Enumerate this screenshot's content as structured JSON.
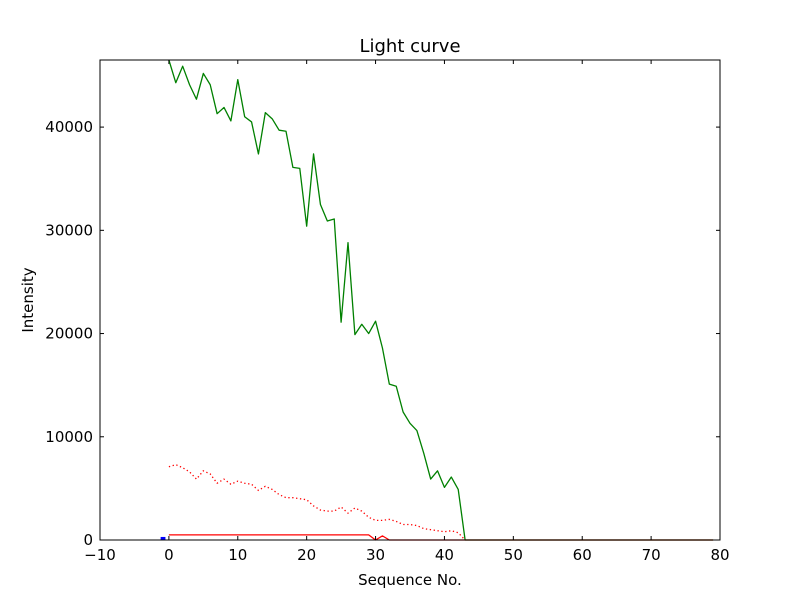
{
  "chart_data": {
    "type": "line",
    "title": "Light curve",
    "xlabel": "Sequence No.",
    "ylabel": "Intensity",
    "xlim": [
      -10,
      80
    ],
    "ylim": [
      0,
      46500
    ],
    "xticks": [
      -10,
      0,
      10,
      20,
      30,
      40,
      50,
      60,
      70,
      80
    ],
    "yticks": [
      0,
      10000,
      20000,
      30000,
      40000
    ],
    "grid": false,
    "legend": "none",
    "series": [
      {
        "color": "#008000",
        "style": "solid",
        "x": [
          0,
          1,
          2,
          3,
          4,
          5,
          6,
          7,
          8,
          9,
          10,
          11,
          12,
          13,
          14,
          15,
          16,
          17,
          18,
          19,
          20,
          21,
          22,
          23,
          24,
          25,
          26,
          27,
          28,
          29,
          30,
          31,
          32,
          33,
          34,
          35,
          36,
          37,
          38,
          39,
          40,
          41,
          42,
          43,
          44,
          45,
          46,
          47,
          48,
          49,
          50,
          51,
          52,
          53,
          54,
          55,
          56,
          57,
          58,
          59,
          60,
          61,
          62,
          63,
          64,
          65,
          66,
          67,
          68,
          69,
          70,
          71,
          72,
          73,
          74,
          75,
          76,
          77,
          78,
          79
        ],
        "y": [
          46500,
          44300,
          45900,
          44100,
          42700,
          45200,
          44100,
          41300,
          41900,
          40600,
          44600,
          41000,
          40500,
          37400,
          41400,
          40800,
          39700,
          39600,
          36100,
          36000,
          30400,
          37400,
          32500,
          30900,
          31100,
          21100,
          28800,
          19900,
          20900,
          20000,
          21200,
          18600,
          15100,
          14900,
          12400,
          11300,
          10600,
          8400,
          5900,
          6700,
          5100,
          6100,
          4900,
          0,
          0,
          0,
          0,
          0,
          0,
          0,
          0,
          0,
          0,
          0,
          0,
          0,
          0,
          0,
          0,
          0,
          0,
          0,
          0,
          0,
          0,
          0,
          0,
          0,
          0,
          0,
          0,
          0,
          0,
          0,
          0,
          0,
          0,
          0,
          0,
          0
        ]
      },
      {
        "color": "#ff0000",
        "style": "dotted",
        "x": [
          0,
          1,
          2,
          3,
          4,
          5,
          6,
          7,
          8,
          9,
          10,
          11,
          12,
          13,
          14,
          15,
          16,
          17,
          18,
          19,
          20,
          21,
          22,
          23,
          24,
          25,
          26,
          27,
          28,
          29,
          30,
          31,
          32,
          33,
          34,
          35,
          36,
          37,
          38,
          39,
          40,
          41,
          42,
          43
        ],
        "y": [
          7100,
          7300,
          7000,
          6600,
          5900,
          6700,
          6400,
          5500,
          5900,
          5400,
          5700,
          5500,
          5400,
          4800,
          5200,
          4900,
          4400,
          4100,
          4100,
          4000,
          3900,
          3300,
          2900,
          2800,
          2800,
          3200,
          2600,
          3100,
          2800,
          2200,
          1900,
          1900,
          2000,
          1800,
          1500,
          1500,
          1400,
          1100,
          1000,
          900,
          800,
          900,
          700,
          0
        ]
      },
      {
        "color": "#ff0000",
        "style": "solid",
        "x": [
          0,
          1,
          2,
          3,
          4,
          5,
          6,
          7,
          8,
          9,
          10,
          11,
          12,
          13,
          14,
          15,
          16,
          17,
          18,
          19,
          20,
          21,
          22,
          23,
          24,
          25,
          26,
          27,
          28,
          29,
          30,
          31,
          32,
          33,
          34,
          35,
          36,
          37,
          38,
          39,
          40,
          41,
          42,
          43,
          44,
          45,
          46,
          47,
          48,
          49,
          50,
          51,
          52,
          53,
          54,
          55,
          56,
          57,
          58,
          59,
          60,
          61,
          62,
          63,
          64,
          65,
          66,
          67,
          68,
          69,
          70,
          71,
          72,
          73,
          74,
          75,
          76,
          77,
          78,
          79
        ],
        "y": [
          500,
          500,
          500,
          500,
          500,
          500,
          500,
          500,
          500,
          500,
          500,
          500,
          500,
          500,
          500,
          500,
          500,
          500,
          500,
          500,
          500,
          500,
          500,
          500,
          500,
          500,
          500,
          500,
          500,
          500,
          0,
          400,
          0,
          0,
          0,
          0,
          0,
          0,
          0,
          0,
          0,
          0,
          0,
          0,
          0,
          0,
          0,
          0,
          0,
          0,
          0,
          0,
          0,
          0,
          0,
          0,
          0,
          0,
          0,
          0,
          0,
          0,
          0,
          0,
          0,
          0,
          0,
          0,
          0,
          0,
          0,
          0,
          0,
          0,
          0,
          0,
          0,
          0,
          0,
          0
        ]
      },
      {
        "color": "#0000ff",
        "style": "solid",
        "x": [
          -1.2,
          -0.5
        ],
        "y": [
          150,
          150
        ]
      }
    ]
  }
}
